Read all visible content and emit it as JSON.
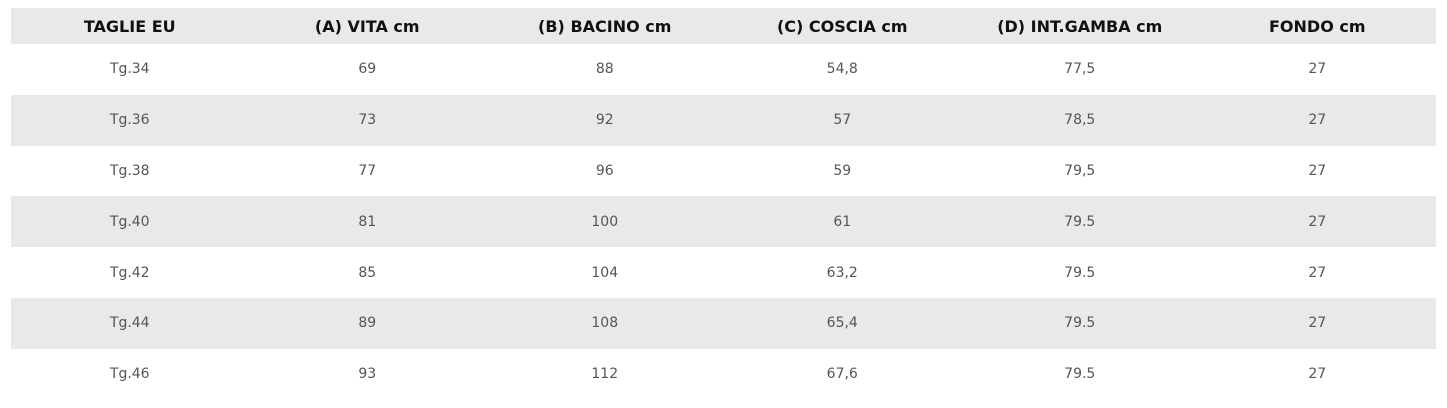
{
  "table": {
    "header": [
      "TAGLIE EU",
      "(A) VITA cm",
      "(B) BACINO cm",
      "(C) COSCIA cm",
      "(D) INT.GAMBA cm",
      "FONDO cm"
    ],
    "rows": [
      [
        "Tg.34",
        "69",
        "88",
        "54,8",
        "77,5",
        "27"
      ],
      [
        "Tg.36",
        "73",
        "92",
        "57",
        "78,5",
        "27"
      ],
      [
        "Tg.38",
        "77",
        "96",
        "59",
        "79,5",
        "27"
      ],
      [
        "Tg.40",
        "81",
        "100",
        "61",
        "79.5",
        "27"
      ],
      [
        "Tg.42",
        "85",
        "104",
        "63,2",
        "79.5",
        "27"
      ],
      [
        "Tg.44",
        "89",
        "108",
        "65,4",
        "79.5",
        "27"
      ],
      [
        "Tg.46",
        "93",
        "112",
        "67,6",
        "79.5",
        "27"
      ]
    ]
  }
}
